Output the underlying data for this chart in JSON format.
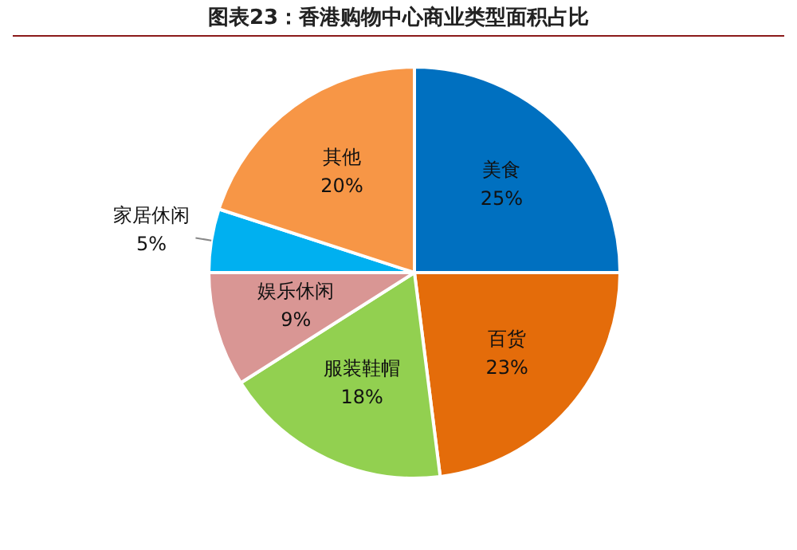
{
  "chart_data": {
    "type": "pie",
    "title": "图表23：香港购物中心商业类型面积占比",
    "categories": [
      "美食",
      "百货",
      "服装鞋帽",
      "娱乐休闲",
      "家居休闲",
      "其他"
    ],
    "values": [
      25,
      23,
      18,
      9,
      5,
      20
    ],
    "colors": [
      "#0070c0",
      "#e46c0a",
      "#92d050",
      "#d99694",
      "#00b0f0",
      "#f79646"
    ],
    "value_labels": [
      "25%",
      "23%",
      "18%",
      "9%",
      "5%",
      "20%"
    ],
    "legend": false
  }
}
